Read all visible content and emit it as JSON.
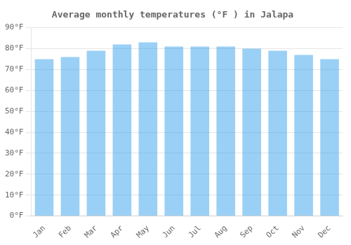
{
  "chart_data": {
    "type": "bar",
    "title": "Average monthly temperatures (°F ) in Jalapa",
    "categories": [
      "Jan",
      "Feb",
      "Mar",
      "Apr",
      "May",
      "Jun",
      "Jul",
      "Aug",
      "Sep",
      "Oct",
      "Nov",
      "Dec"
    ],
    "values": [
      75,
      76,
      79,
      82,
      83,
      81,
      81,
      81,
      80,
      79,
      77,
      75
    ],
    "ylim": [
      0,
      90
    ],
    "yticks": [
      {
        "value": 0,
        "label": "0°F"
      },
      {
        "value": 10,
        "label": "10°F"
      },
      {
        "value": 20,
        "label": "20°F"
      },
      {
        "value": 30,
        "label": "30°F"
      },
      {
        "value": 40,
        "label": "40°F"
      },
      {
        "value": 50,
        "label": "50°F"
      },
      {
        "value": 60,
        "label": "60°F"
      },
      {
        "value": 70,
        "label": "70°F"
      },
      {
        "value": 80,
        "label": "80°F"
      },
      {
        "value": 90,
        "label": "90°F"
      }
    ],
    "grid": true
  }
}
